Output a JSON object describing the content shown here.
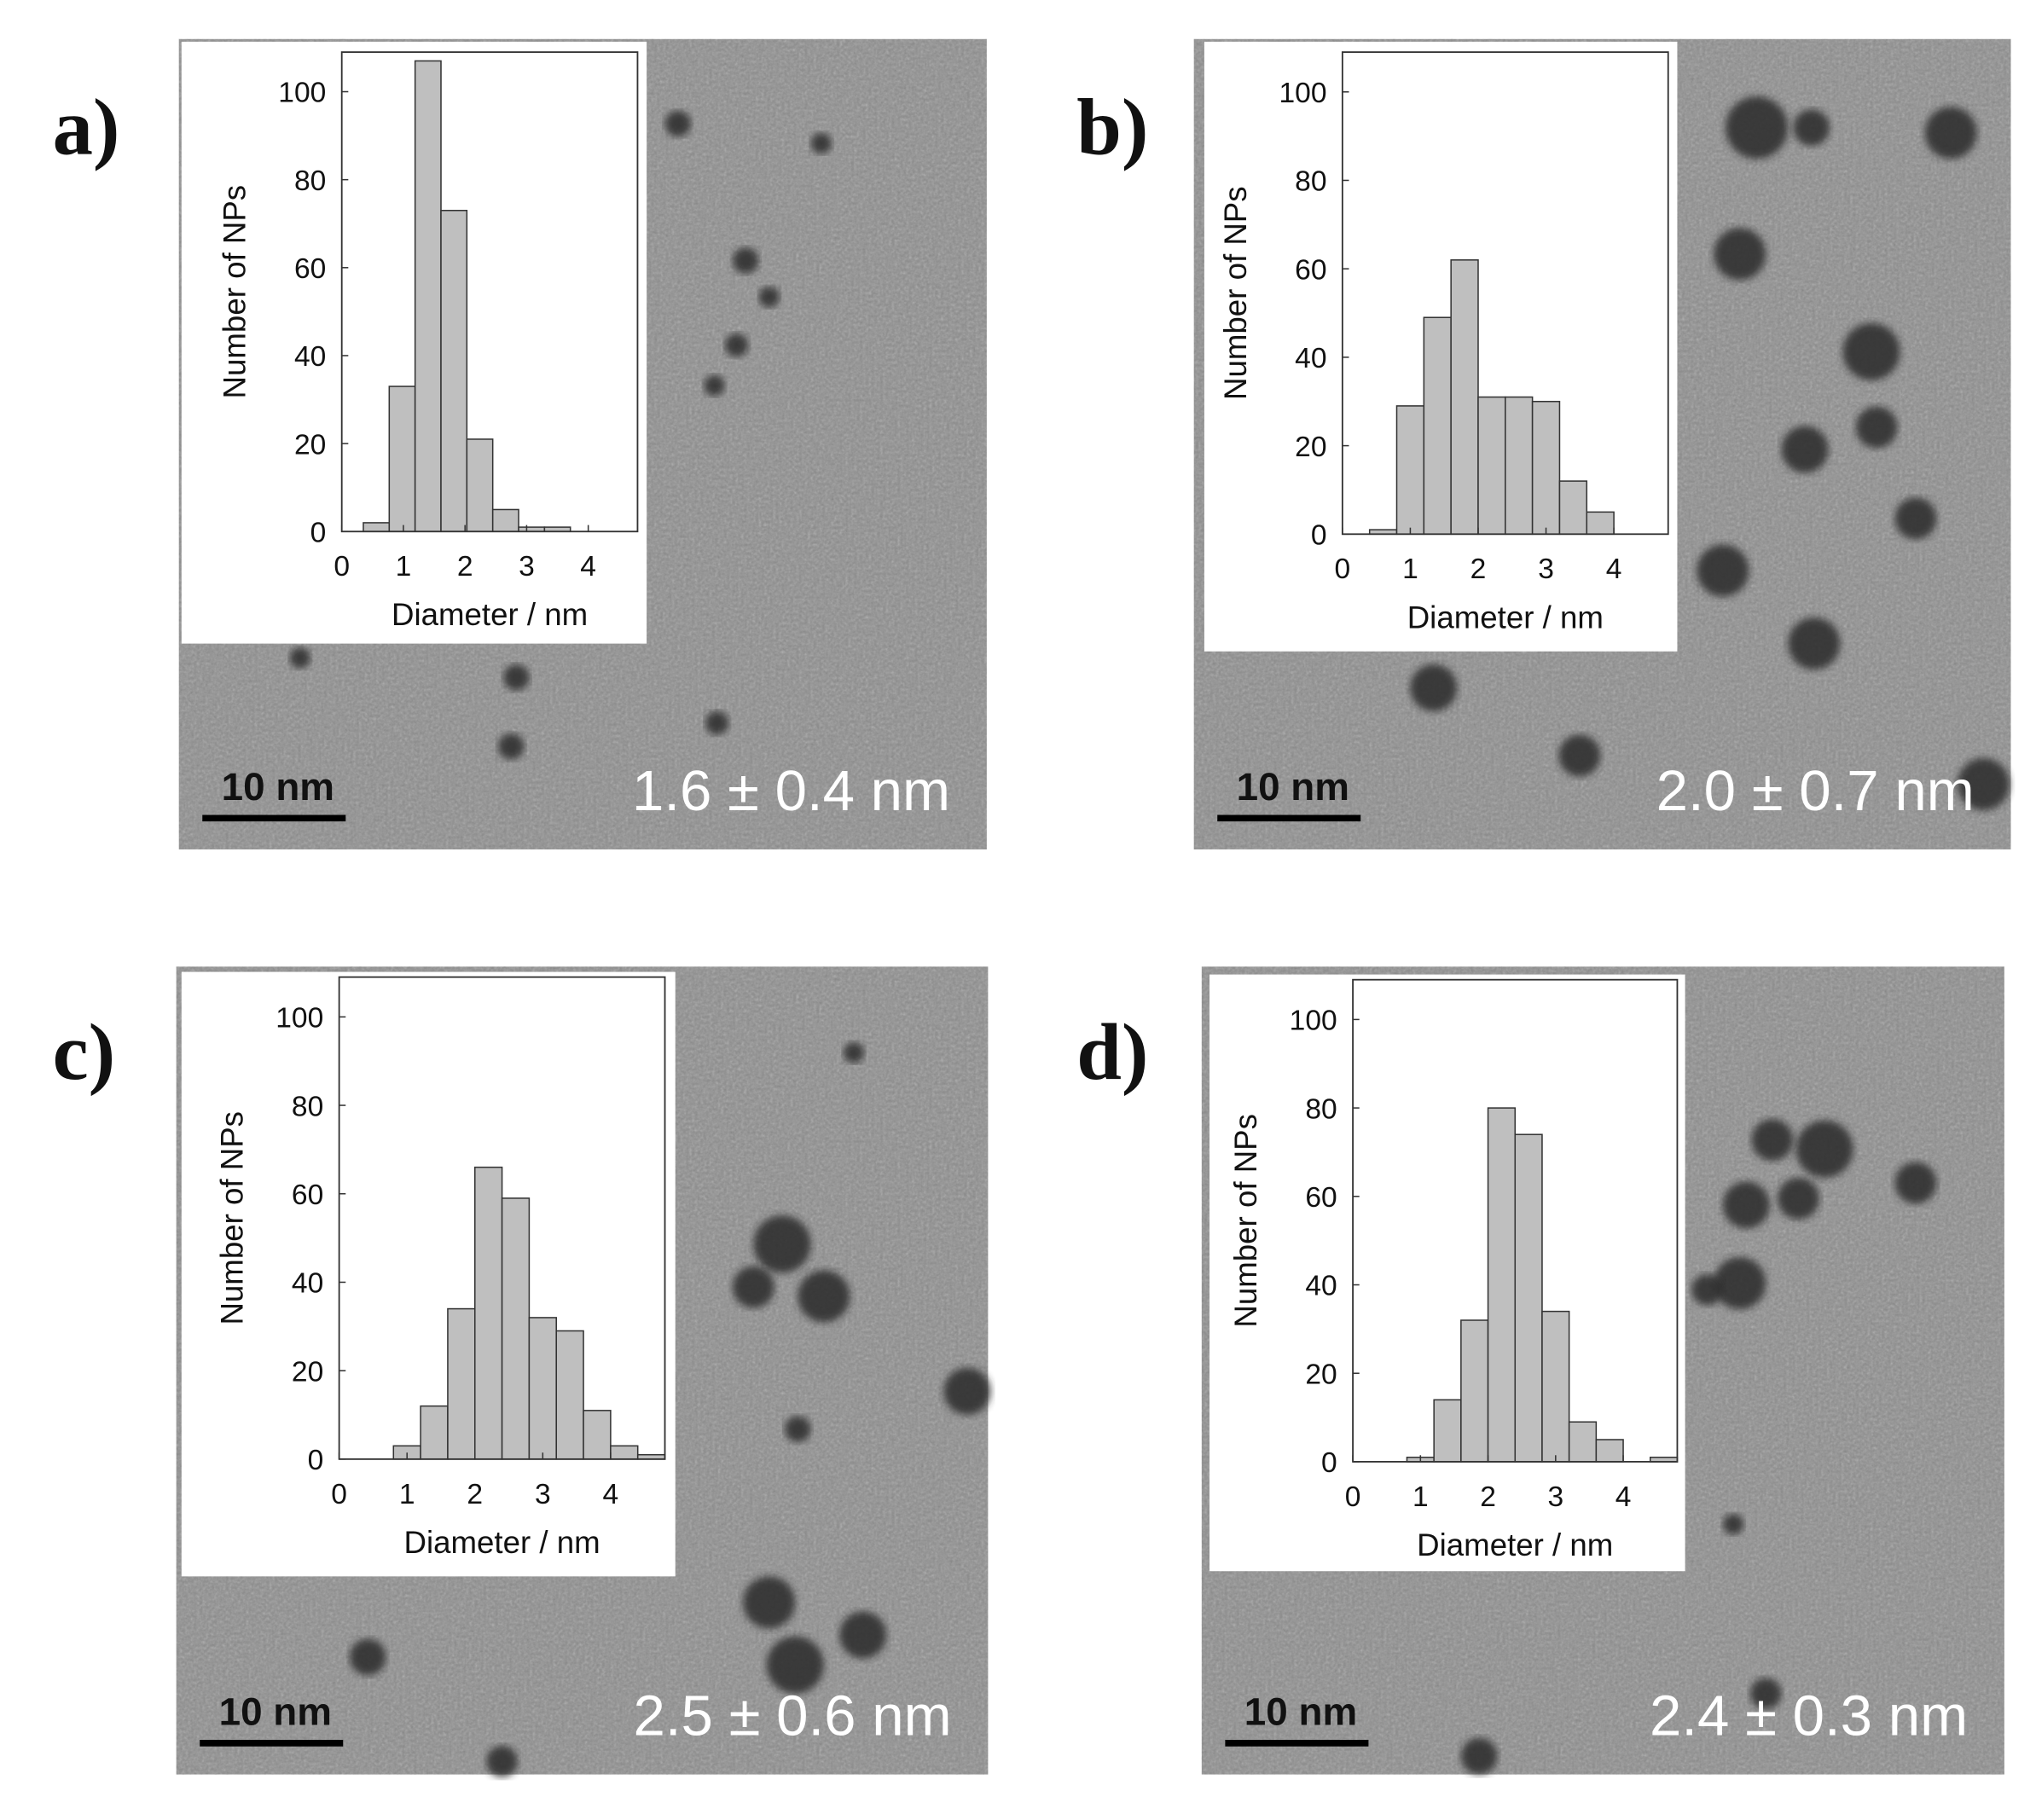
{
  "chart_data": [
    {
      "type": "histogram",
      "panel_label": "a)",
      "annotation": "1.6 ± 0.4 nm",
      "scale_bar": "10 nm",
      "xlabel": "Diameter / nm",
      "ylabel": "Number of NPs",
      "bins": [
        0.35,
        0.77,
        1.19,
        1.61,
        2.03,
        2.45,
        2.87,
        3.29,
        3.71
      ],
      "values": [
        2,
        33,
        107,
        73,
        21,
        5,
        1,
        1
      ],
      "color": "#bfbfbf",
      "xlim": [
        0,
        4.8
      ],
      "ylim": [
        0,
        109
      ],
      "xticks": [
        0,
        1,
        2,
        3,
        4
      ],
      "yticks": [
        0,
        20,
        40,
        60,
        80,
        100
      ]
    },
    {
      "type": "histogram",
      "panel_label": "b)",
      "annotation": "2.0 ± 0.7 nm",
      "scale_bar": "10 nm",
      "xlabel": "Diameter / nm",
      "ylabel": "Number of NPs",
      "bins": [
        0.4,
        0.8,
        1.2,
        1.6,
        2.0,
        2.4,
        2.8,
        3.2,
        3.6,
        4.0
      ],
      "values": [
        1,
        29,
        49,
        62,
        31,
        31,
        30,
        12,
        5
      ],
      "color": "#bfbfbf",
      "xlim": [
        0,
        4.8
      ],
      "ylim": [
        0,
        109
      ],
      "xticks": [
        0,
        1,
        2,
        3,
        4
      ],
      "yticks": [
        0,
        20,
        40,
        60,
        80,
        100
      ]
    },
    {
      "type": "histogram",
      "panel_label": "c)",
      "annotation": "2.5 ± 0.6 nm",
      "scale_bar": "10 nm",
      "xlabel": "Diameter / nm",
      "ylabel": "Number of NPs",
      "bins": [
        0.8,
        1.2,
        1.6,
        2.0,
        2.4,
        2.8,
        3.2,
        3.6,
        4.0,
        4.4,
        4.8
      ],
      "values": [
        3,
        12,
        34,
        66,
        59,
        32,
        29,
        11,
        3,
        1
      ],
      "color": "#bfbfbf",
      "xlim": [
        0,
        4.8
      ],
      "ylim": [
        0,
        109
      ],
      "xticks": [
        0,
        1,
        2,
        3,
        4
      ],
      "yticks": [
        0,
        20,
        40,
        60,
        80,
        100
      ]
    },
    {
      "type": "histogram",
      "panel_label": "d)",
      "annotation": "2.4 ± 0.3 nm",
      "scale_bar": "10 nm",
      "xlabel": "Diameter / nm",
      "ylabel": "Number of NPs",
      "bins": [
        0.8,
        1.2,
        1.6,
        2.0,
        2.4,
        2.8,
        3.2,
        3.6,
        4.0,
        4.4,
        4.8
      ],
      "values": [
        1,
        14,
        32,
        80,
        74,
        34,
        9,
        5,
        0,
        1
      ],
      "color": "#bfbfbf",
      "xlim": [
        0,
        4.8
      ],
      "ylim": [
        0,
        109
      ],
      "xticks": [
        0,
        1,
        2,
        3,
        4
      ],
      "yticks": [
        0,
        20,
        40,
        60,
        80,
        100
      ]
    }
  ]
}
